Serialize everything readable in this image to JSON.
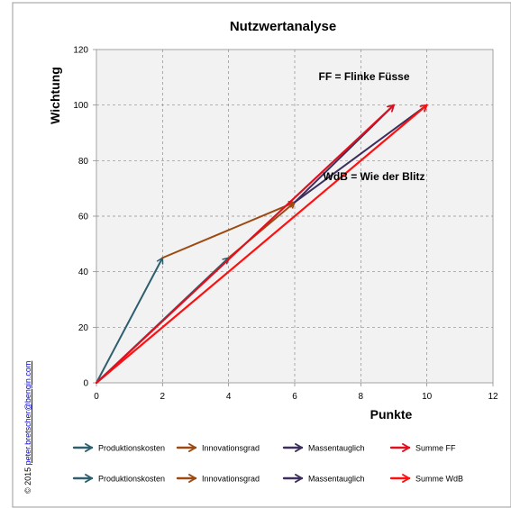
{
  "copyright": {
    "prefix": "© 2015 ",
    "link": "peter.bretscher@bengin.com"
  },
  "chart_data": {
    "type": "line",
    "title": "Nutzwertanalyse",
    "xlabel": "Punkte",
    "ylabel": "Wichtung",
    "xlim": [
      0,
      12
    ],
    "ylim": [
      0,
      120
    ],
    "xticks": [
      0,
      2,
      4,
      6,
      8,
      10,
      12
    ],
    "yticks": [
      0,
      20,
      40,
      60,
      80,
      100,
      120
    ],
    "grid": true,
    "annotations": [
      {
        "text": "FF = Flinke Füsse",
        "x": 8.1,
        "y": 109
      },
      {
        "text": "WdB = Wie der Blitz",
        "x": 8.4,
        "y": 73
      }
    ],
    "series": [
      {
        "name": "Produktionskosten",
        "group": "FF",
        "color": "#2e5f6e",
        "from": [
          0,
          0
        ],
        "to": [
          2,
          45
        ]
      },
      {
        "name": "Innovationsgrad",
        "group": "FF",
        "color": "#9c4a12",
        "from": [
          2,
          45
        ],
        "to": [
          6,
          65
        ]
      },
      {
        "name": "Massentauglich",
        "group": "FF",
        "color": "#3d2e5c",
        "from": [
          6,
          65
        ],
        "to": [
          9,
          100
        ]
      },
      {
        "name": "Summe FF",
        "group": "FF",
        "color": "#e01020",
        "from": [
          0,
          0
        ],
        "to": [
          9,
          100
        ]
      },
      {
        "name": "Produktionskosten",
        "group": "WdB",
        "color": "#2e5f6e",
        "from": [
          0,
          0
        ],
        "to": [
          4,
          45
        ]
      },
      {
        "name": "Innovationsgrad",
        "group": "WdB",
        "color": "#9c4a12",
        "from": [
          4,
          45
        ],
        "to": [
          6,
          65
        ]
      },
      {
        "name": "Massentauglich",
        "group": "WdB",
        "color": "#3d2e5c",
        "from": [
          6,
          65
        ],
        "to": [
          10,
          100
        ]
      },
      {
        "name": "Summe WdB",
        "group": "WdB",
        "color": "#ff1010",
        "from": [
          0,
          0
        ],
        "to": [
          10,
          100
        ]
      }
    ]
  }
}
